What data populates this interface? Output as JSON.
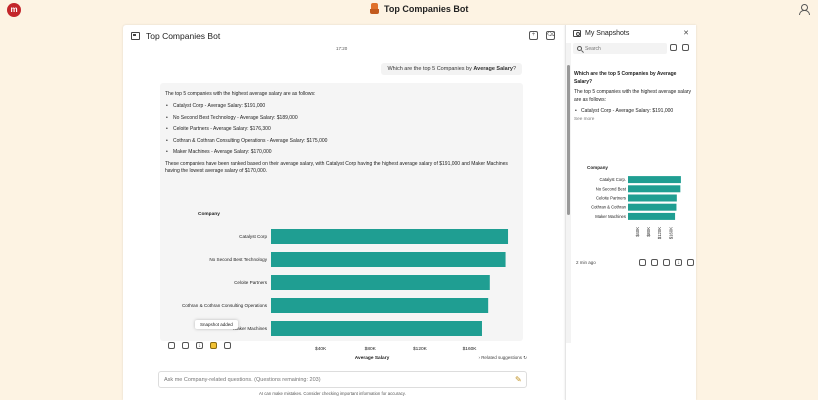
{
  "app": {
    "title": "Top Companies Bot",
    "logo_text": "m"
  },
  "chat": {
    "header_title": "Top Companies Bot",
    "timestamp": "17:20",
    "user_message": {
      "prefix": "Which are the top 5 Companies by ",
      "bold": "Average Salary",
      "suffix": "?"
    },
    "bot_message": {
      "intro": "The top 5 companies with the highest average salary are as follows:",
      "items": [
        "Catalyst Corp - Average Salary: $191,000",
        "No Second Best Technology - Average Salary: $189,000",
        "Celoite Partners - Average Salary: $176,300",
        "Cothran & Cothran Consulting Operations - Average Salary: $175,000",
        "Maker Machines - Average Salary: $170,000"
      ],
      "summary": "These companies have been ranked based on their average salary, with Catalyst Corp having the highest average salary of $191,000 and Maker Machines having the lowest average salary of $170,000."
    },
    "snapshot_tooltip": "Snapshot added",
    "related_suggestions": "Related suggestions",
    "input_placeholder": "Ask me Company-related questions. (Questions remaining: 203)",
    "disclaimer": "AI can make mistakes. Consider checking important information for accuracy."
  },
  "chart_data": {
    "type": "bar",
    "orientation": "horizontal",
    "title": "Company",
    "xlabel": "Average Salary",
    "categories": [
      "Catalyst Corp",
      "No Second Best Technology",
      "Celoite Partners",
      "Cothran & Cothran Consulting Operations",
      "Maker Machines"
    ],
    "values": [
      191000,
      189000,
      176300,
      175000,
      170000
    ],
    "xlim": [
      0,
      195000
    ],
    "xticks": [
      40000,
      80000,
      120000,
      160000
    ],
    "xtick_labels": [
      "$40K",
      "$80K",
      "$120K",
      "$160K"
    ],
    "bar_color": "#1f9e92",
    "grid": false
  },
  "snapshots": {
    "title": "My Snapshots",
    "search_placeholder": "Search",
    "card": {
      "question": "Which are the top 5 Companies by Average Salary?",
      "answer": "The top 5 companies with the highest average salary are as follows:",
      "first_item": "Catalyst Corp - Average Salary: $191,000",
      "see_more": "See more",
      "mini_chart_title": "Company",
      "mini_categories": [
        "Catalyst Corp.",
        "No Second Best",
        "Celoite Partners",
        "Cothran & Cothran",
        "Maker Machines"
      ],
      "time": "2 min ago"
    }
  },
  "colors": {
    "accent": "#1f9e92",
    "background": "#fdf3e3",
    "logo": "#c3262b"
  }
}
